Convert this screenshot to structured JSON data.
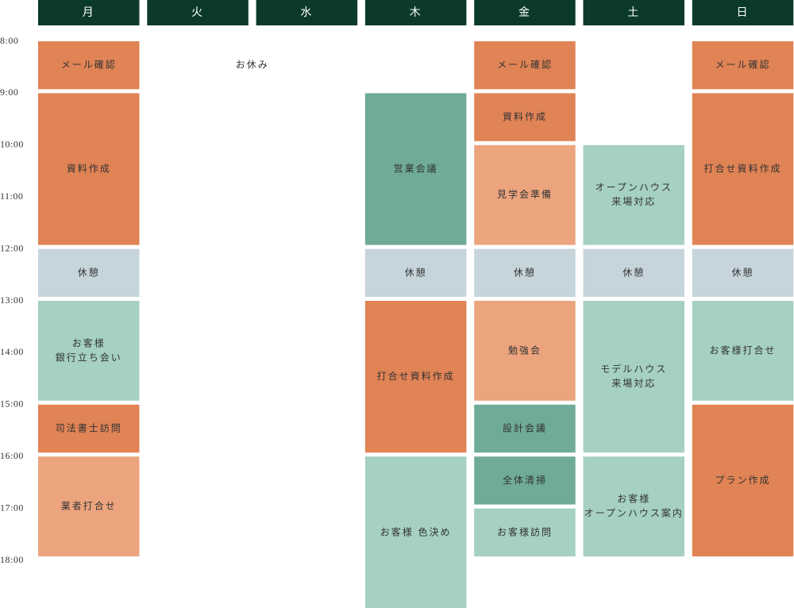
{
  "days": [
    {
      "name": "月",
      "events": [
        {
          "label": [
            "メール確認"
          ],
          "start": 8,
          "end": 9,
          "color": "#e08355"
        },
        {
          "label": [
            "資料作成"
          ],
          "start": 9,
          "end": 12,
          "color": "#e08355"
        },
        {
          "label": [
            "休憩"
          ],
          "start": 12,
          "end": 13,
          "color": "#c6d5dc"
        },
        {
          "label": [
            "お客様",
            "銀行立ち会い"
          ],
          "start": 13,
          "end": 15,
          "color": "#a5d0c2"
        },
        {
          "label": [
            "司法書士訪問"
          ],
          "start": 15,
          "end": 16,
          "color": "#e08355"
        },
        {
          "label": [
            "業者打合せ"
          ],
          "start": 16,
          "end": 18,
          "color": "#eca47e"
        }
      ]
    },
    {
      "name": "火",
      "events": [
        {
          "label": [
            "お休み"
          ],
          "start": 8,
          "end": 9,
          "span": 2
        }
      ]
    },
    {
      "name": "水",
      "events": []
    },
    {
      "name": "木",
      "events": [
        {
          "label": [
            "営業会議"
          ],
          "start": 9,
          "end": 12,
          "color": "#6fab98"
        },
        {
          "label": [
            "休憩"
          ],
          "start": 12,
          "end": 13,
          "color": "#c6d5dc"
        },
        {
          "label": [
            "打合せ資料作成"
          ],
          "start": 13,
          "end": 16,
          "color": "#e08355"
        },
        {
          "label": [
            "お客様 色決め"
          ],
          "start": 16,
          "end": 19,
          "color": "#a5d0c2"
        }
      ]
    },
    {
      "name": "金",
      "events": [
        {
          "label": [
            "メール確認"
          ],
          "start": 8,
          "end": 9,
          "color": "#e08355"
        },
        {
          "label": [
            "資料作成"
          ],
          "start": 9,
          "end": 10,
          "color": "#e08355"
        },
        {
          "label": [
            "見学会準備"
          ],
          "start": 10,
          "end": 12,
          "color": "#eca47e"
        },
        {
          "label": [
            "休憩"
          ],
          "start": 12,
          "end": 13,
          "color": "#c6d5dc"
        },
        {
          "label": [
            "勉強会"
          ],
          "start": 13,
          "end": 15,
          "color": "#eca47e"
        },
        {
          "label": [
            "設計会議"
          ],
          "start": 15,
          "end": 16,
          "color": "#6fab98"
        },
        {
          "label": [
            "全体清掃"
          ],
          "start": 16,
          "end": 17,
          "color": "#6fab98"
        },
        {
          "label": [
            "お客様訪問"
          ],
          "start": 17,
          "end": 18,
          "color": "#a5d0c2"
        }
      ]
    },
    {
      "name": "土",
      "events": [
        {
          "label": [
            "オープンハウス",
            "来場対応"
          ],
          "start": 10,
          "end": 12,
          "color": "#a5d0c2"
        },
        {
          "label": [
            "休憩"
          ],
          "start": 12,
          "end": 13,
          "color": "#c6d5dc"
        },
        {
          "label": [
            "モデルハウス",
            "来場対応"
          ],
          "start": 13,
          "end": 16,
          "color": "#a5d0c2"
        },
        {
          "label": [
            "お客様",
            "オープンハウス案内"
          ],
          "start": 16,
          "end": 18,
          "color": "#a5d0c2"
        }
      ]
    },
    {
      "name": "日",
      "events": [
        {
          "label": [
            "メール確認"
          ],
          "start": 8,
          "end": 9,
          "color": "#e08355"
        },
        {
          "label": [
            "打合せ資料作成"
          ],
          "start": 9,
          "end": 12,
          "color": "#e08355"
        },
        {
          "label": [
            "休憩"
          ],
          "start": 12,
          "end": 13,
          "color": "#c6d5dc"
        },
        {
          "label": [
            "お客様打合せ"
          ],
          "start": 13,
          "end": 15,
          "color": "#a5d0c2"
        },
        {
          "label": [
            "プラン作成"
          ],
          "start": 15,
          "end": 18,
          "color": "#e08355"
        }
      ]
    }
  ],
  "times": [
    {
      "value": 8,
      "label": "8:00"
    },
    {
      "value": 9,
      "label": "9:00"
    },
    {
      "value": 10,
      "label": "10:00"
    },
    {
      "value": 11,
      "label": "11:00"
    },
    {
      "value": 12,
      "label": "12:00"
    },
    {
      "value": 13,
      "label": "13:00"
    },
    {
      "value": 14,
      "label": "14:00"
    },
    {
      "value": 15,
      "label": "15:00"
    },
    {
      "value": 16,
      "label": "16:00"
    },
    {
      "value": 17,
      "label": "17:00"
    },
    {
      "value": 18,
      "label": "18:00"
    }
  ],
  "header_color": "#0b3a28"
}
